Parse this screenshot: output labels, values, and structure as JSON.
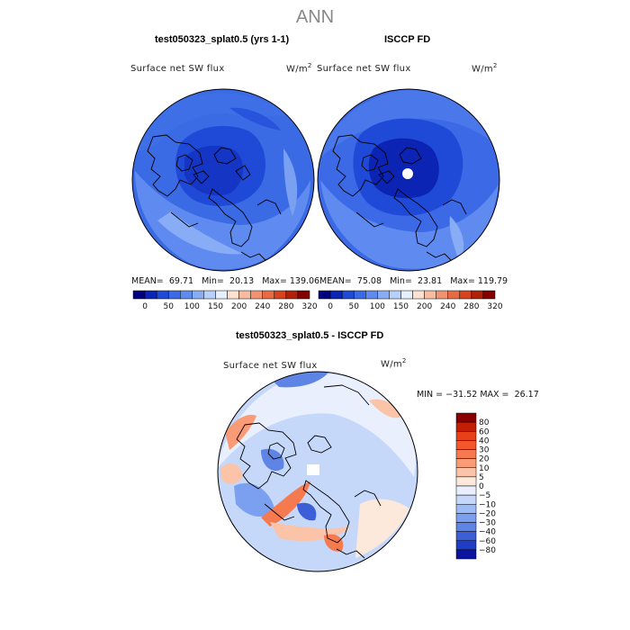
{
  "page": {
    "season": "ANN",
    "variable": "Surface net SW flux",
    "units_base": "W/m",
    "units_exp": "2"
  },
  "panels": {
    "model": {
      "title": "test050323_splat0.5 (yrs 1-1)",
      "mean": "69.71",
      "min": "20.13",
      "max": "139.06"
    },
    "obs": {
      "title": "ISCCP FD",
      "mean": "75.08",
      "min": "23.81",
      "max": "119.79"
    },
    "diff": {
      "title": "test050323_splat0.5 - ISCCP FD",
      "min": "−31.52",
      "max": "26.17"
    }
  },
  "labels": {
    "mean": "MEAN=",
    "min": "Min=",
    "max": "Max=",
    "min_eq": "MIN =",
    "max_eq": "MAX ="
  },
  "chart_data": [
    {
      "type": "heatmap",
      "title": "Surface net SW flux",
      "projection": "north polar stereographic",
      "units": "W/m2",
      "colorbar": {
        "orientation": "horizontal",
        "levels": [
          0,
          50,
          100,
          150,
          200,
          240,
          280,
          320
        ],
        "tick_labels": [
          "0",
          "50",
          "100",
          "150",
          "200",
          "240",
          "280",
          "320"
        ],
        "colors": [
          "#00007f",
          "#0b24b4",
          "#1f4ad8",
          "#3c6ae6",
          "#5f8af0",
          "#88acf6",
          "#b8cffa",
          "#e7eefc",
          "#fbe1d2",
          "#f7bba0",
          "#f19270",
          "#e86a44",
          "#d5441f",
          "#b12008",
          "#860000"
        ]
      },
      "stats": {
        "mean": 69.71,
        "min": 20.13,
        "max": 139.06
      }
    },
    {
      "type": "heatmap",
      "title": "Surface net SW flux",
      "projection": "north polar stereographic",
      "units": "W/m2",
      "colorbar": {
        "orientation": "horizontal",
        "levels": [
          0,
          50,
          100,
          150,
          200,
          240,
          280,
          320
        ],
        "tick_labels": [
          "0",
          "50",
          "100",
          "150",
          "200",
          "240",
          "280",
          "320"
        ],
        "colors": [
          "#00007f",
          "#0b24b4",
          "#1f4ad8",
          "#3c6ae6",
          "#5f8af0",
          "#88acf6",
          "#b8cffa",
          "#e7eefc",
          "#fbe1d2",
          "#f7bba0",
          "#f19270",
          "#e86a44",
          "#d5441f",
          "#b12008",
          "#860000"
        ]
      },
      "stats": {
        "mean": 75.08,
        "min": 23.81,
        "max": 119.79
      }
    },
    {
      "type": "heatmap",
      "title": "Surface net SW flux",
      "projection": "north polar stereographic",
      "units": "W/m2",
      "colorbar": {
        "orientation": "vertical",
        "levels": [
          80,
          60,
          40,
          30,
          20,
          10,
          5,
          0,
          -5,
          -10,
          -20,
          -30,
          -40,
          -60,
          -80
        ],
        "tick_labels": [
          "80",
          "60",
          "40",
          "30",
          "20",
          "10",
          "5",
          "0",
          "−5",
          "−10",
          "−20",
          "−30",
          "−40",
          "−60",
          "−80"
        ],
        "colors": [
          "#8a0000",
          "#c21d05",
          "#e8411a",
          "#f2582c",
          "#f67a4f",
          "#f99b76",
          "#fbc3a8",
          "#fde8dc",
          "#e9effc",
          "#c6d8fa",
          "#9dbcf6",
          "#7ba0f0",
          "#5e84e6",
          "#3c5fd8",
          "#1f3cc6",
          "#0a14a0"
        ]
      },
      "stats": {
        "min": -31.52,
        "max": 26.17
      }
    }
  ]
}
